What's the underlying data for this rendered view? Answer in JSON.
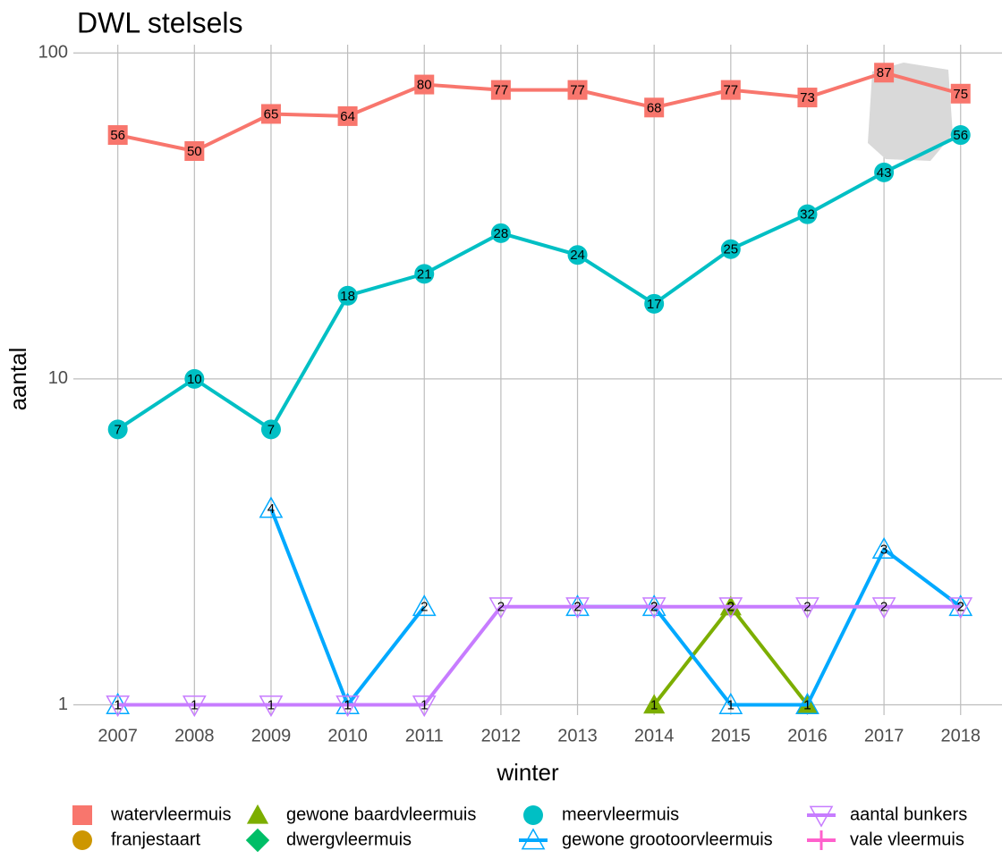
{
  "chart_data": {
    "type": "line",
    "title": "DWL stelsels",
    "xlabel": "winter",
    "ylabel": "aantal",
    "x": [
      2007,
      2008,
      2009,
      2010,
      2011,
      2012,
      2013,
      2014,
      2015,
      2016,
      2017,
      2018
    ],
    "xlim": [
      2006.42,
      2018.54
    ],
    "xticks": [
      2007,
      2008,
      2009,
      2010,
      2011,
      2012,
      2013,
      2014,
      2015,
      2016,
      2017,
      2018
    ],
    "ylim": [
      0.93,
      106
    ],
    "yticks": [
      1,
      10,
      100
    ],
    "log_y": true,
    "grid": true,
    "legend": "bottom",
    "series": [
      {
        "name": "watervleermuis",
        "color": "#F8766D",
        "marker": "square",
        "values": [
          56,
          50,
          65,
          64,
          80,
          77,
          77,
          68,
          77,
          73,
          87,
          75
        ]
      },
      {
        "name": "franjestaart",
        "color": "#CD9600",
        "marker": "circle",
        "values": [
          null,
          null,
          null,
          null,
          null,
          null,
          null,
          null,
          null,
          null,
          null,
          null
        ]
      },
      {
        "name": "gewone baardvleermuis",
        "color": "#7CAE00",
        "marker": "triangle",
        "values": [
          null,
          null,
          null,
          null,
          null,
          null,
          null,
          1,
          2,
          1,
          null,
          null
        ]
      },
      {
        "name": "dwergvleermuis",
        "color": "#00BE67",
        "marker": "diamond",
        "values": [
          null,
          null,
          null,
          null,
          null,
          null,
          null,
          null,
          null,
          null,
          null,
          null
        ]
      },
      {
        "name": "meervleermuis",
        "color": "#00BFC4",
        "marker": "circle",
        "values": [
          7,
          10,
          7,
          18,
          21,
          28,
          24,
          17,
          25,
          32,
          43,
          56
        ]
      },
      {
        "name": "gewone grootoorvleermuis",
        "color": "#00A9FF",
        "marker": "open-triangle",
        "values": [
          1,
          null,
          4,
          1,
          2,
          null,
          2,
          2,
          1,
          1,
          3,
          2
        ]
      },
      {
        "name": "aantal bunkers",
        "color": "#C77CFF",
        "marker": "open-triangle-down",
        "values": [
          1,
          1,
          1,
          1,
          1,
          2,
          2,
          2,
          2,
          2,
          2,
          2
        ]
      },
      {
        "name": "vale vleermuis",
        "color": "#FF61CC",
        "marker": "plus",
        "values": [
          null,
          null,
          null,
          null,
          null,
          null,
          null,
          null,
          null,
          null,
          null,
          null
        ]
      }
    ]
  }
}
